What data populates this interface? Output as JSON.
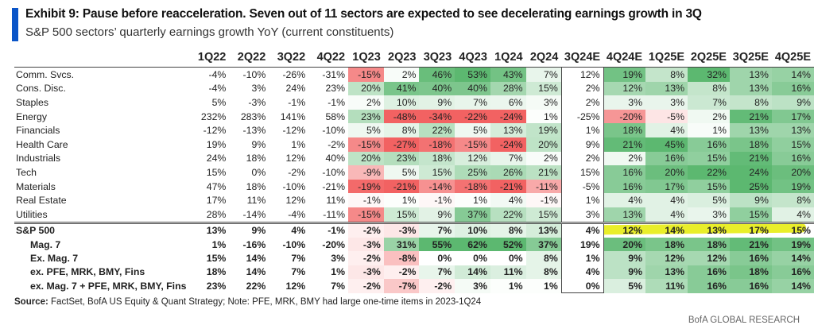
{
  "header": {
    "title": "Exhibit 9: Pause before reacceleration. Seven out of 11 sectors are expected to see decelerating earnings growth in 3Q",
    "subtitle": "S&P 500 sectors’ quarterly earnings growth YoY (current constituents)"
  },
  "chart_data": {
    "type": "heatmap",
    "columns": [
      "1Q22",
      "2Q22",
      "3Q22",
      "4Q22",
      "1Q23",
      "2Q23",
      "3Q23",
      "4Q23",
      "1Q24",
      "2Q24",
      "3Q24E",
      "4Q24E",
      "1Q25E",
      "2Q25E",
      "3Q25E",
      "4Q25E"
    ],
    "unit": "%",
    "highlight": {
      "row": "S&P 500",
      "from": "4Q24E",
      "to": "4Q25E",
      "color": "#e9ee2a"
    },
    "rows": [
      {
        "label": "Comm. Svcs.",
        "values": [
          -4,
          -10,
          -26,
          -31,
          -15,
          2,
          46,
          53,
          43,
          7,
          12,
          19,
          8,
          32,
          13,
          14
        ]
      },
      {
        "label": "Cons. Disc.",
        "values": [
          -4,
          3,
          24,
          23,
          20,
          41,
          40,
          40,
          28,
          15,
          2,
          12,
          13,
          8,
          13,
          16
        ]
      },
      {
        "label": "Staples",
        "values": [
          5,
          -3,
          -1,
          -1,
          2,
          10,
          9,
          7,
          6,
          3,
          2,
          3,
          3,
          7,
          8,
          9
        ]
      },
      {
        "label": "Energy",
        "values": [
          232,
          283,
          141,
          58,
          23,
          -48,
          -34,
          -22,
          -24,
          1,
          -25,
          -20,
          -5,
          2,
          21,
          17
        ]
      },
      {
        "label": "Financials",
        "values": [
          -12,
          -13,
          -12,
          -10,
          5,
          8,
          22,
          5,
          13,
          19,
          1,
          18,
          4,
          1,
          13,
          13
        ]
      },
      {
        "label": "Health Care",
        "values": [
          19,
          9,
          1,
          -2,
          -15,
          -27,
          -18,
          -15,
          -24,
          20,
          9,
          21,
          45,
          16,
          18,
          15
        ]
      },
      {
        "label": "Industrials",
        "values": [
          24,
          18,
          12,
          40,
          20,
          23,
          18,
          12,
          7,
          2,
          2,
          2,
          16,
          15,
          21,
          16
        ]
      },
      {
        "label": "Tech",
        "values": [
          15,
          0,
          -2,
          -10,
          -9,
          5,
          15,
          25,
          26,
          21,
          15,
          16,
          20,
          22,
          24,
          20
        ]
      },
      {
        "label": "Materials",
        "values": [
          47,
          18,
          -10,
          -21,
          -19,
          -21,
          -14,
          -18,
          -21,
          -11,
          -5,
          16,
          17,
          15,
          25,
          19
        ]
      },
      {
        "label": "Real Estate",
        "values": [
          17,
          11,
          12,
          11,
          -1,
          1,
          -1,
          1,
          4,
          -1,
          1,
          4,
          4,
          5,
          9,
          8
        ]
      },
      {
        "label": "Utilities",
        "values": [
          28,
          -14,
          -4,
          -11,
          -15,
          15,
          9,
          37,
          22,
          15,
          3,
          13,
          4,
          3,
          15,
          4
        ]
      },
      {
        "label": "S&P 500",
        "summary": true,
        "values": [
          13,
          9,
          4,
          -1,
          -2,
          -3,
          7,
          10,
          8,
          13,
          4,
          12,
          14,
          13,
          17,
          15
        ]
      },
      {
        "label": "Mag. 7",
        "summary": true,
        "indent": true,
        "values": [
          1,
          -16,
          -10,
          -20,
          -3,
          31,
          55,
          62,
          52,
          37,
          19,
          20,
          18,
          18,
          21,
          19
        ]
      },
      {
        "label": "Ex. Mag. 7",
        "summary": true,
        "indent": true,
        "values": [
          15,
          14,
          7,
          3,
          -2,
          -8,
          0,
          0,
          0,
          8,
          1,
          9,
          12,
          12,
          16,
          14
        ]
      },
      {
        "label": "ex. PFE, MRK, BMY, Fins",
        "summary": true,
        "indent": true,
        "values": [
          18,
          14,
          7,
          1,
          -3,
          -2,
          7,
          14,
          11,
          8,
          4,
          9,
          13,
          16,
          18,
          16
        ]
      },
      {
        "label": "ex. Mag. 7 + PFE, MRK, BMY, Fins",
        "summary": true,
        "indent": true,
        "values": [
          23,
          22,
          12,
          7,
          -2,
          -7,
          -2,
          3,
          1,
          1,
          0,
          5,
          11,
          16,
          16,
          14
        ]
      }
    ]
  },
  "footer": {
    "source_label": "Source:",
    "source_text": " FactSet, BofA US Equity & Quant Strategy; Note: PFE, MRK, BMY had large one-time items in 2023-1Q24",
    "brand": "BofA GLOBAL RESEARCH"
  },
  "colors": {
    "accent": "#0a55c8",
    "positive": "#5cb870",
    "negative": "#f26262"
  }
}
